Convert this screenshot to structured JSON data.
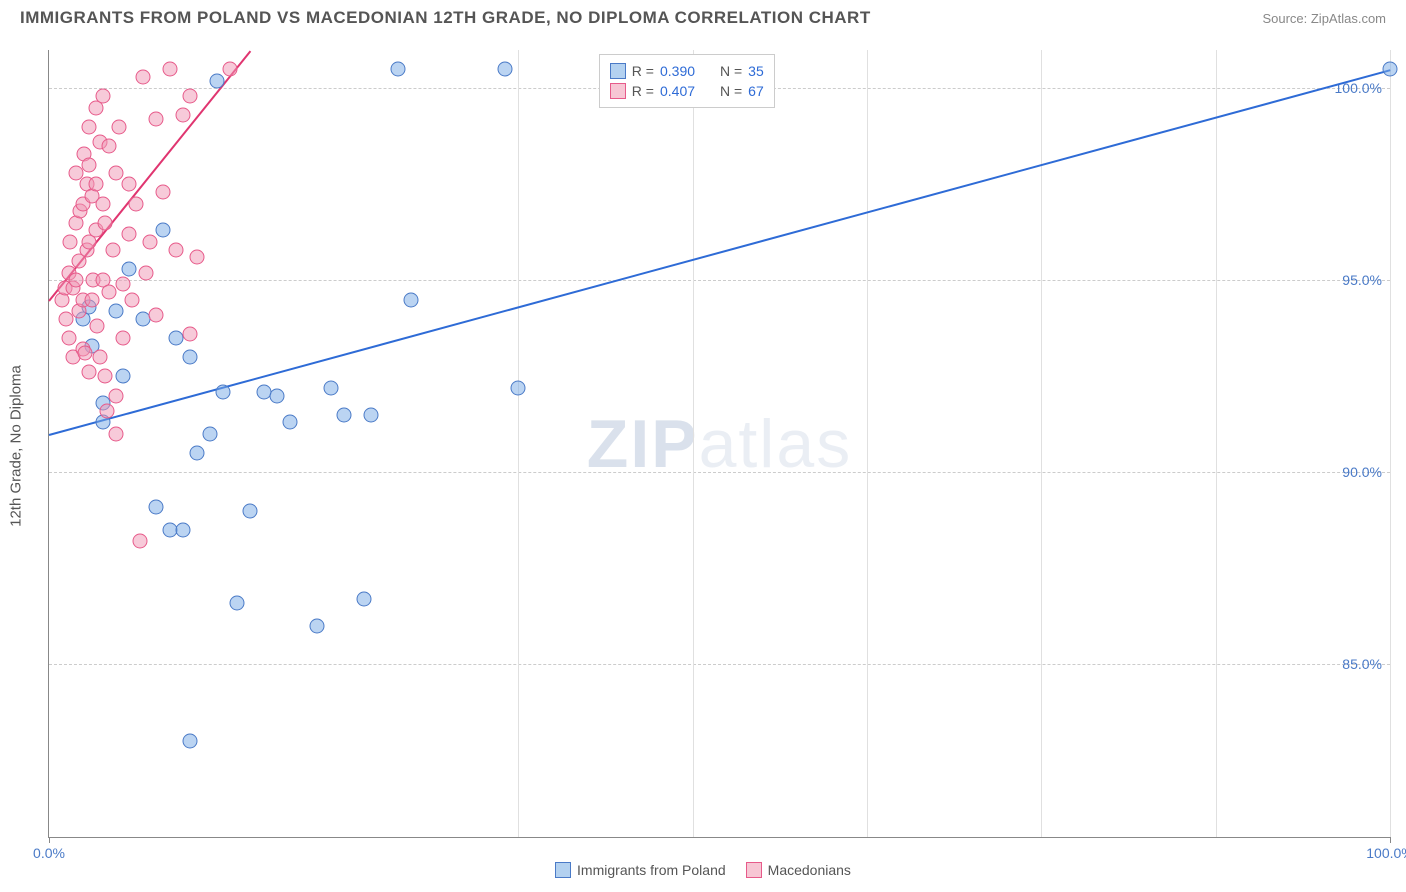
{
  "title": "IMMIGRANTS FROM POLAND VS MACEDONIAN 12TH GRADE, NO DIPLOMA CORRELATION CHART",
  "source": "Source: ZipAtlas.com",
  "ylabel": "12th Grade, No Diploma",
  "watermark_a": "ZIP",
  "watermark_b": "atlas",
  "xlim": [
    0,
    100
  ],
  "ylim": [
    80.5,
    101
  ],
  "xticks": [
    {
      "pos": 0,
      "label": "0.0%"
    },
    {
      "pos": 100,
      "label": "100.0%"
    }
  ],
  "yticks": [
    {
      "pos": 85,
      "label": "85.0%"
    },
    {
      "pos": 90,
      "label": "90.0%"
    },
    {
      "pos": 95,
      "label": "95.0%"
    },
    {
      "pos": 100,
      "label": "100.0%"
    }
  ],
  "vgrid": [
    35,
    48,
    61,
    74,
    87,
    100
  ],
  "legend_top": {
    "rows": [
      {
        "swatch_fill": "#b3d1f0",
        "swatch_border": "#4a7ac7",
        "r_label": "R =",
        "r_val": "0.390",
        "n_label": "N =",
        "n_val": "35"
      },
      {
        "swatch_fill": "#f7c6d4",
        "swatch_border": "#e75a8a",
        "r_label": "R =",
        "r_val": "0.407",
        "n_label": "N =",
        "n_val": "67"
      }
    ]
  },
  "legend_bottom": [
    {
      "swatch_fill": "#b3d1f0",
      "swatch_border": "#4a7ac7",
      "label": "Immigrants from Poland"
    },
    {
      "swatch_fill": "#f7c6d4",
      "swatch_border": "#e75a8a",
      "label": "Macedonians"
    }
  ],
  "series": [
    {
      "name": "poland",
      "color_fill": "rgba(120,170,230,0.5)",
      "color_stroke": "#4a7ac7",
      "marker_size": 15,
      "trend": {
        "x1": 0,
        "y1": 91.0,
        "x2": 100,
        "y2": 100.5,
        "color": "#2e6bd6",
        "width": 2
      },
      "points": [
        [
          2.5,
          94.0
        ],
        [
          3.0,
          94.3
        ],
        [
          3.2,
          93.3
        ],
        [
          4.0,
          91.8
        ],
        [
          4.0,
          91.3
        ],
        [
          5.0,
          94.2
        ],
        [
          5.5,
          92.5
        ],
        [
          6.0,
          95.3
        ],
        [
          7.0,
          94.0
        ],
        [
          8.0,
          89.1
        ],
        [
          8.5,
          96.3
        ],
        [
          9.0,
          88.5
        ],
        [
          9.5,
          93.5
        ],
        [
          10.0,
          88.5
        ],
        [
          10.5,
          93.0
        ],
        [
          10.5,
          83.0
        ],
        [
          11.0,
          90.5
        ],
        [
          12.0,
          91.0
        ],
        [
          12.5,
          100.2
        ],
        [
          13.0,
          92.1
        ],
        [
          14.0,
          86.6
        ],
        [
          15.0,
          89.0
        ],
        [
          16.0,
          92.1
        ],
        [
          17.0,
          92.0
        ],
        [
          18.0,
          91.3
        ],
        [
          20.0,
          86.0
        ],
        [
          21.0,
          92.2
        ],
        [
          22.0,
          91.5
        ],
        [
          23.5,
          86.7
        ],
        [
          24.0,
          91.5
        ],
        [
          26.0,
          100.5
        ],
        [
          27.0,
          94.5
        ],
        [
          34.0,
          100.5
        ],
        [
          35.0,
          92.2
        ],
        [
          100.0,
          100.5
        ]
      ]
    },
    {
      "name": "macedonians",
      "color_fill": "rgba(240,150,180,0.5)",
      "color_stroke": "#e75a8a",
      "marker_size": 15,
      "trend": {
        "x1": 0,
        "y1": 94.5,
        "x2": 15,
        "y2": 101,
        "color": "#e03570",
        "width": 2
      },
      "points": [
        [
          1.0,
          94.5
        ],
        [
          1.2,
          94.8
        ],
        [
          1.3,
          94.0
        ],
        [
          1.5,
          95.2
        ],
        [
          1.5,
          93.5
        ],
        [
          1.6,
          96.0
        ],
        [
          1.8,
          94.8
        ],
        [
          1.8,
          93.0
        ],
        [
          2.0,
          95.0
        ],
        [
          2.0,
          96.5
        ],
        [
          2.0,
          97.8
        ],
        [
          2.2,
          95.5
        ],
        [
          2.2,
          94.2
        ],
        [
          2.3,
          96.8
        ],
        [
          2.5,
          97.0
        ],
        [
          2.5,
          94.5
        ],
        [
          2.5,
          93.2
        ],
        [
          2.6,
          98.3
        ],
        [
          2.7,
          93.1
        ],
        [
          2.8,
          97.5
        ],
        [
          2.8,
          95.8
        ],
        [
          3.0,
          96.0
        ],
        [
          3.0,
          98.0
        ],
        [
          3.0,
          99.0
        ],
        [
          3.0,
          92.6
        ],
        [
          3.2,
          94.5
        ],
        [
          3.2,
          97.2
        ],
        [
          3.3,
          95.0
        ],
        [
          3.5,
          97.5
        ],
        [
          3.5,
          96.3
        ],
        [
          3.5,
          99.5
        ],
        [
          3.6,
          93.8
        ],
        [
          3.8,
          98.6
        ],
        [
          3.8,
          93.0
        ],
        [
          4.0,
          95.0
        ],
        [
          4.0,
          97.0
        ],
        [
          4.0,
          99.8
        ],
        [
          4.2,
          96.5
        ],
        [
          4.2,
          92.5
        ],
        [
          4.3,
          91.6
        ],
        [
          4.5,
          94.7
        ],
        [
          4.5,
          98.5
        ],
        [
          4.8,
          95.8
        ],
        [
          5.0,
          97.8
        ],
        [
          5.0,
          92.0
        ],
        [
          5.0,
          91.0
        ],
        [
          5.2,
          99.0
        ],
        [
          5.5,
          94.9
        ],
        [
          5.5,
          93.5
        ],
        [
          6.0,
          96.2
        ],
        [
          6.0,
          97.5
        ],
        [
          6.2,
          94.5
        ],
        [
          6.5,
          97.0
        ],
        [
          6.8,
          88.2
        ],
        [
          7.0,
          100.3
        ],
        [
          7.2,
          95.2
        ],
        [
          7.5,
          96.0
        ],
        [
          8.0,
          99.2
        ],
        [
          8.0,
          94.1
        ],
        [
          8.5,
          97.3
        ],
        [
          9.0,
          100.5
        ],
        [
          9.5,
          95.8
        ],
        [
          10.0,
          99.3
        ],
        [
          10.5,
          93.6
        ],
        [
          10.5,
          99.8
        ],
        [
          11.0,
          95.6
        ],
        [
          13.5,
          100.5
        ]
      ]
    }
  ],
  "colors": {
    "axis": "#888888",
    "grid": "#cccccc",
    "text_label": "#4a7ac7",
    "title": "#555555"
  }
}
